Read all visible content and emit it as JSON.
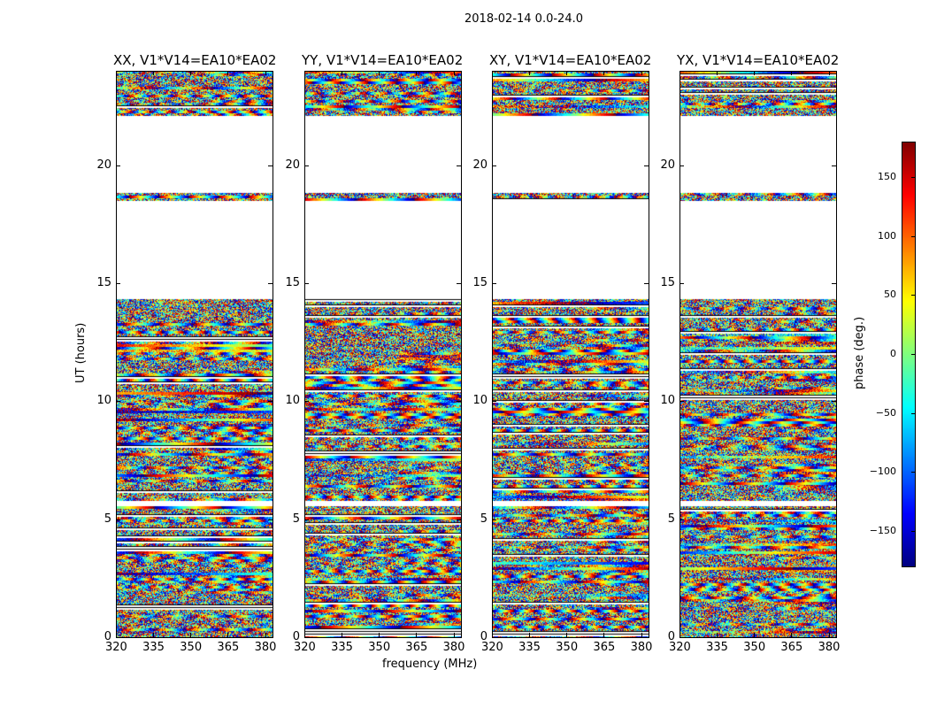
{
  "suptitle": "2018-02-14 0.0-24.0",
  "chart_data": {
    "type": "heatmap",
    "title": "2018-02-14 0.0-24.0",
    "xlabel": "frequency (MHz)",
    "ylabel": "UT (hours)",
    "xlim": [
      320,
      383
    ],
    "ylim": [
      0,
      24
    ],
    "xticks": [
      "320",
      "335",
      "350",
      "365",
      "380"
    ],
    "yticks": [
      "0",
      "5",
      "10",
      "15",
      "20"
    ],
    "panels": [
      {
        "title": "XX, V1*V14=EA10*EA02"
      },
      {
        "title": "YY, V1*V14=EA10*EA02"
      },
      {
        "title": "XY, V1*V14=EA10*EA02"
      },
      {
        "title": "YX, V1*V14=EA10*EA02"
      }
    ],
    "data_time_ranges_hours": [
      [
        0,
        5.6
      ],
      [
        5.8,
        6.0
      ],
      [
        6.1,
        14.4
      ],
      [
        18.5,
        18.9
      ],
      [
        22.2,
        24
      ]
    ],
    "colorbar": {
      "label": "phase (deg.)",
      "range": [
        -180,
        180
      ],
      "ticks": [
        "150",
        "100",
        "50",
        "0",
        "−50",
        "−100",
        "−150"
      ],
      "colormap": "jet"
    }
  }
}
